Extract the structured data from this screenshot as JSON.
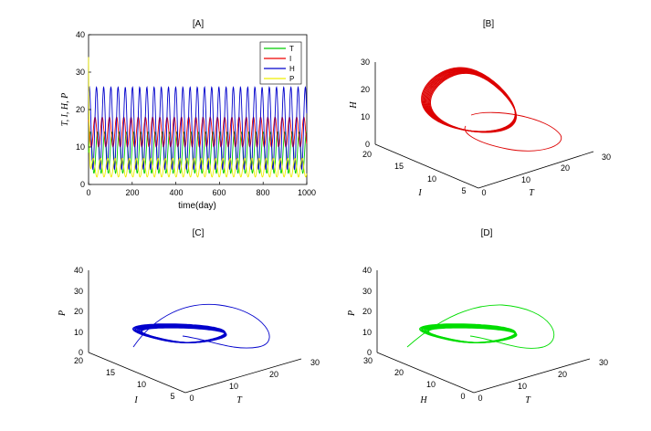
{
  "chart_data": [
    {
      "panel": "A",
      "type": "line",
      "title": "[A]",
      "xlabel": "time(day)",
      "ylabel": "T, I, H, P",
      "xlim": [
        0,
        1000
      ],
      "ylim": [
        0,
        40
      ],
      "xticks": [
        "0",
        "200",
        "400",
        "600",
        "800",
        "1000"
      ],
      "yticks": [
        "0",
        "10",
        "20",
        "30",
        "40"
      ],
      "period_days": 33,
      "series": [
        {
          "name": "T",
          "color": "#00cc00",
          "low": 3,
          "high": 14
        },
        {
          "name": "I",
          "color": "#ee0000",
          "low": 10,
          "high": 18
        },
        {
          "name": "H",
          "color": "#0000cc",
          "low": 4,
          "high": 26
        },
        {
          "name": "P",
          "color": "#eeee00",
          "low": 2,
          "high": 7,
          "initial_peak": 38
        }
      ],
      "legend": [
        "T",
        "I",
        "H",
        "P"
      ],
      "legend_position": "top-right"
    },
    {
      "panel": "B",
      "type": "line3d",
      "title": "[B]",
      "color": "#dd0000",
      "xlabel": "T",
      "ylabel": "I",
      "zlabel": "H",
      "xticks": [
        "0",
        "10",
        "20",
        "30"
      ],
      "yticks": [
        "5",
        "10",
        "15",
        "20"
      ],
      "zticks": [
        "0",
        "10",
        "20",
        "30"
      ]
    },
    {
      "panel": "C",
      "type": "line3d",
      "title": "[C]",
      "color": "#0000cc",
      "xlabel": "T",
      "ylabel": "I",
      "zlabel": "P",
      "xticks": [
        "0",
        "10",
        "20",
        "30"
      ],
      "yticks": [
        "5",
        "10",
        "15",
        "20"
      ],
      "zticks": [
        "0",
        "10",
        "20",
        "30",
        "40"
      ]
    },
    {
      "panel": "D",
      "type": "line3d",
      "title": "[D]",
      "color": "#00dd00",
      "xlabel": "T",
      "ylabel": "H",
      "zlabel": "P",
      "xticks": [
        "0",
        "10",
        "20",
        "30"
      ],
      "yticks": [
        "0",
        "10",
        "20",
        "30"
      ],
      "zticks": [
        "0",
        "10",
        "20",
        "30",
        "40"
      ]
    }
  ]
}
